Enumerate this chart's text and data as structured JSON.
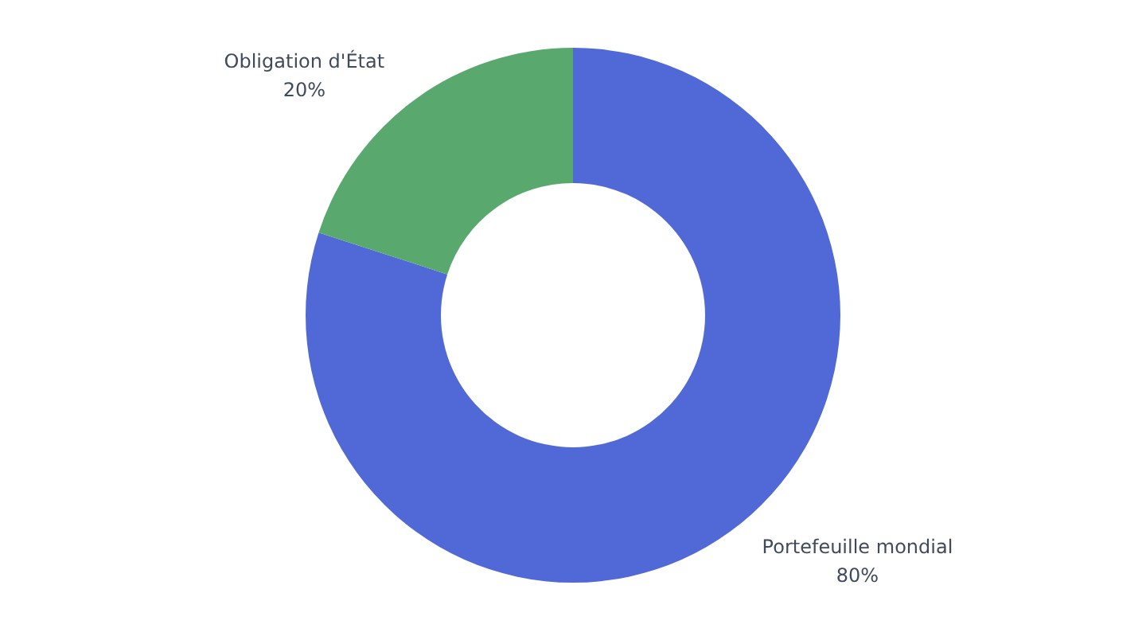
{
  "chart_data": {
    "type": "donut",
    "categories": [
      "Portefeuille mondial",
      "Obligation d'État"
    ],
    "values": [
      80,
      20
    ],
    "colors": [
      "#5169d6",
      "#59a96f"
    ],
    "value_labels": [
      "80%",
      "20%"
    ]
  }
}
